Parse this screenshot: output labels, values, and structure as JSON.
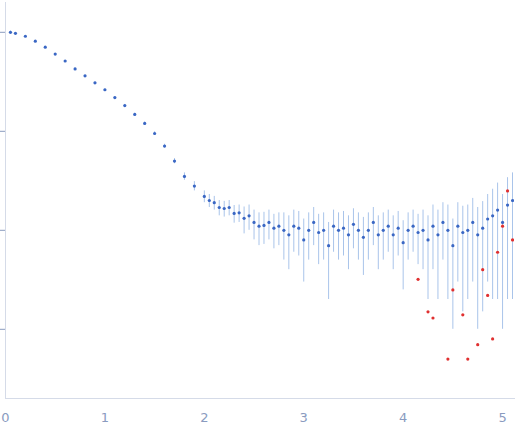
{
  "chart_data": {
    "type": "scatter",
    "xlim": [
      0,
      5.12
    ],
    "xticks": [
      0,
      1,
      2,
      3,
      4,
      5
    ],
    "ylim": [
      0.2,
      2000
    ],
    "yticks": [
      1,
      10,
      100,
      1000
    ],
    "log": "y",
    "tick_labels": "x",
    "grid": false,
    "series": [
      {
        "color": "#3a67c4",
        "marker": "circle",
        "x": [
          0.05,
          0.1,
          0.2,
          0.3,
          0.4,
          0.5,
          0.6,
          0.7,
          0.8,
          0.9,
          1.0,
          1.1,
          1.2,
          1.3,
          1.4,
          1.5,
          1.6,
          1.7,
          1.8,
          1.9,
          2.0,
          2.05,
          2.1,
          2.15,
          2.2,
          2.25,
          2.3,
          2.35,
          2.4,
          2.45,
          2.5,
          2.55,
          2.6,
          2.65,
          2.7,
          2.75,
          2.8,
          2.85,
          2.9,
          2.95,
          3.0,
          3.05,
          3.1,
          3.15,
          3.2,
          3.25,
          3.3,
          3.35,
          3.4,
          3.45,
          3.5,
          3.55,
          3.6,
          3.65,
          3.7,
          3.75,
          3.8,
          3.85,
          3.9,
          3.95,
          4.0,
          4.05,
          4.1,
          4.15,
          4.2,
          4.25,
          4.3,
          4.35,
          4.4,
          4.45,
          4.5,
          4.55,
          4.6,
          4.65,
          4.7,
          4.75,
          4.8,
          4.85,
          4.9,
          4.95,
          5.0,
          5.05,
          5.1
        ],
        "values": [
          1000,
          977,
          912,
          813,
          708,
          603,
          513,
          427,
          363,
          309,
          263,
          219,
          182,
          148,
          120,
          95,
          71,
          50,
          35,
          28,
          22,
          20,
          19,
          17,
          16.6,
          17,
          14.8,
          15,
          13.2,
          14,
          12,
          11,
          11.2,
          12,
          10.5,
          11,
          10,
          9,
          11,
          10.5,
          8,
          10,
          12,
          9.5,
          10,
          7,
          11,
          10,
          10.5,
          9,
          11.5,
          10,
          8.5,
          10,
          12,
          9,
          10,
          11,
          9,
          10.5,
          7.5,
          10,
          11,
          9.5,
          10,
          8,
          11,
          9,
          12,
          10,
          7,
          11,
          9.5,
          10,
          12,
          9,
          10.5,
          13,
          14,
          16,
          12,
          18,
          20
        ],
        "errors": [
          30,
          8,
          8,
          8,
          8,
          7,
          7,
          6,
          6,
          6,
          5,
          5,
          5,
          4,
          4,
          4,
          3,
          3,
          3,
          3,
          3,
          3,
          3,
          3,
          3,
          3,
          3,
          3,
          4,
          4,
          4,
          4,
          4,
          4,
          4,
          4,
          5,
          5,
          5,
          5,
          5,
          5,
          5,
          5,
          5,
          5,
          5,
          5,
          5,
          5,
          5,
          5,
          5,
          5,
          5,
          5,
          5,
          5,
          5,
          5,
          5,
          5,
          5,
          5,
          6,
          6,
          7,
          7,
          7,
          8,
          6,
          8,
          8,
          8,
          9,
          8,
          9,
          10,
          12,
          14,
          11,
          16,
          18
        ]
      },
      {
        "color": "#e03030",
        "marker": "circle",
        "x": [
          4.15,
          4.25,
          4.3,
          4.45,
          4.5,
          4.6,
          4.65,
          4.75,
          4.8,
          4.85,
          4.9,
          4.95,
          5.0,
          5.05,
          5.1
        ],
        "values": [
          3.2,
          1.5,
          1.3,
          0.5,
          2.5,
          1.4,
          0.5,
          0.7,
          4,
          2.2,
          0.8,
          6,
          11,
          25,
          8
        ]
      }
    ]
  }
}
